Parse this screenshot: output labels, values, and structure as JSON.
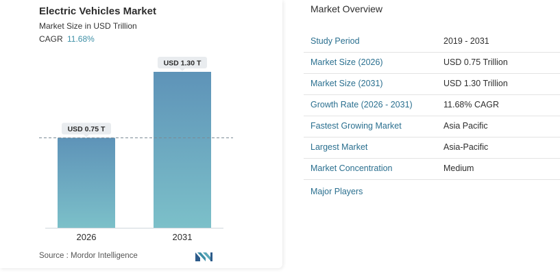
{
  "chart_data": {
    "type": "bar",
    "title": "Electric Vehicles Market",
    "subtitle": "Market Size in USD Trillion",
    "cagr_label": "CAGR",
    "cagr_value": "11.68%",
    "categories": [
      "2026",
      "2031"
    ],
    "values": [
      0.75,
      1.3
    ],
    "data_labels": [
      "USD 0.75 T",
      "USD 1.30 T"
    ],
    "ylim": [
      0,
      1.3
    ],
    "reference_line_value": 0.75,
    "bar_color_top": "#5e93b8",
    "bar_color_bottom": "#7cc0c9",
    "grid": false
  },
  "source_text": "Source :  Mordor Intelligence",
  "overview": {
    "title": "Market Overview",
    "rows": [
      {
        "label": "Study Period",
        "value": "2019 - 2031"
      },
      {
        "label": "Market Size (2026)",
        "value": "USD 0.75 Trillion"
      },
      {
        "label": "Market Size (2031)",
        "value": "USD 1.30 Trillion"
      },
      {
        "label": "Growth Rate (2026 - 2031)",
        "value": "11.68% CAGR"
      },
      {
        "label": "Fastest Growing Market",
        "value": "Asia Pacific"
      },
      {
        "label": "Largest Market",
        "value": "Asia-Pacific"
      },
      {
        "label": "Market Concentration",
        "value": "Medium"
      }
    ],
    "major_players_label": "Major Players"
  },
  "colors": {
    "accent_teal": "#3d8fa6",
    "label_blue": "#2a6f8f"
  },
  "icons": {
    "brand_logo": "mordor-intelligence-logo-icon"
  }
}
